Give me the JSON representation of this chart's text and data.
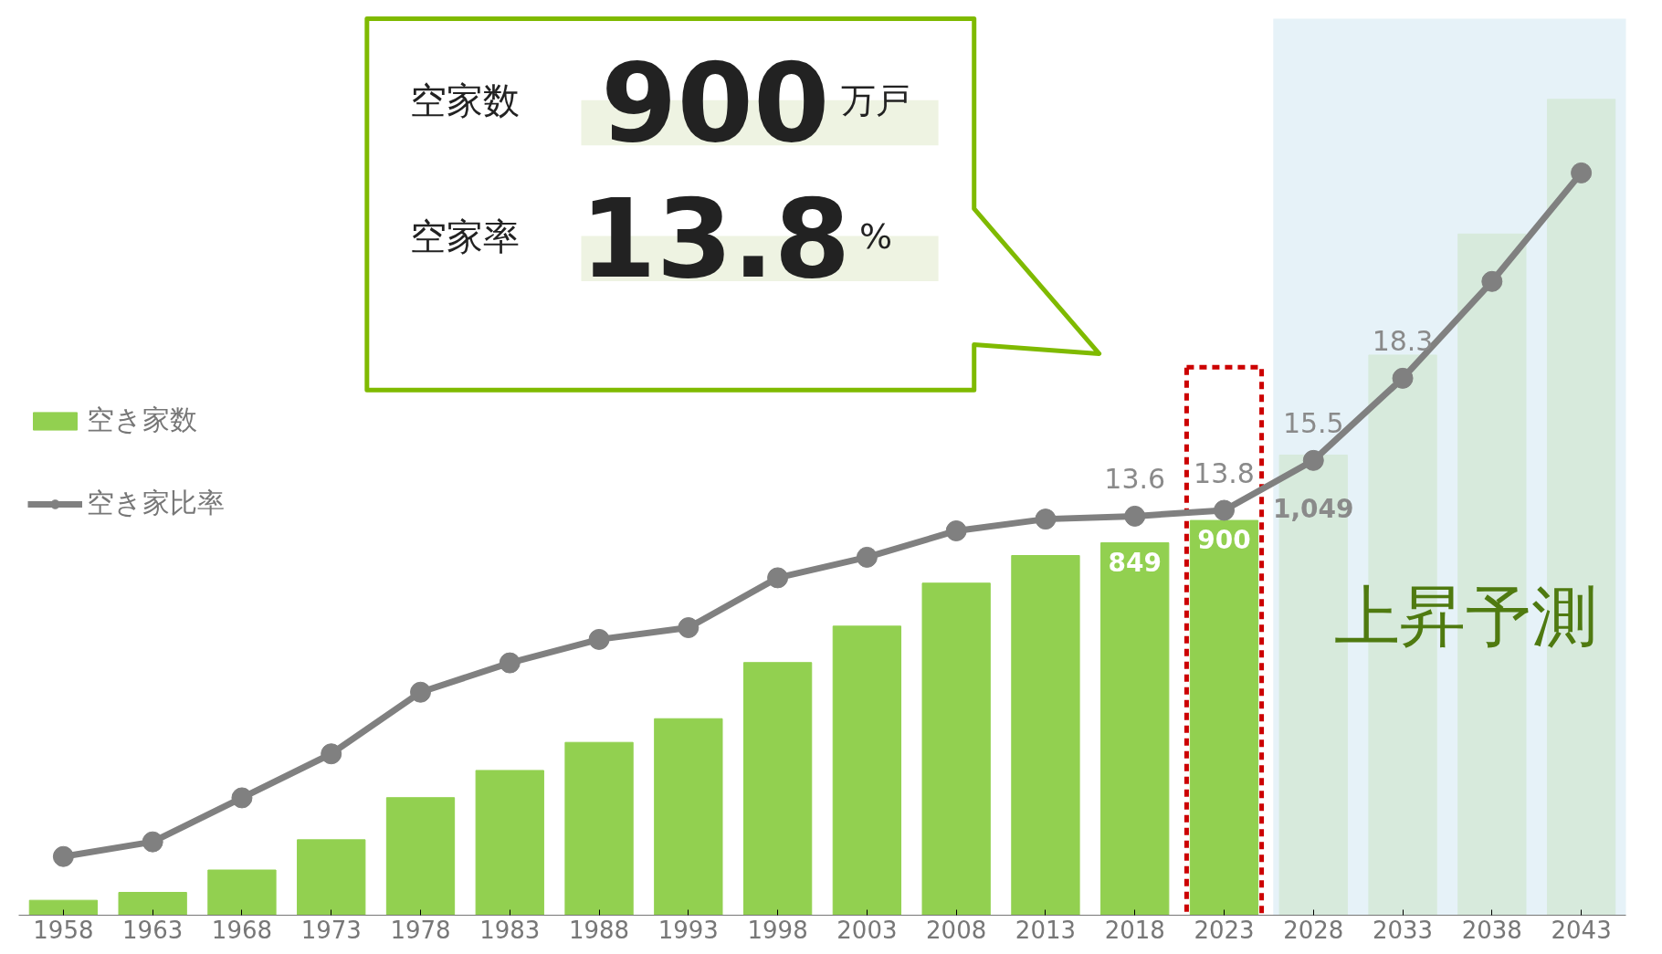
{
  "chart_data": {
    "type": "bar",
    "categories": [
      "1958",
      "1963",
      "1968",
      "1973",
      "1978",
      "1983",
      "1988",
      "1993",
      "1998",
      "2003",
      "2008",
      "2013",
      "2018",
      "2023",
      "2028",
      "2033",
      "2038",
      "2043"
    ],
    "series": [
      {
        "name": "空き家数",
        "color": "#92d050",
        "colors": [
          "#92d050",
          "#92d050",
          "#92d050",
          "#92d050",
          "#92d050",
          "#92d050",
          "#92d050",
          "#92d050",
          "#92d050",
          "#92d050",
          "#92d050",
          "#92d050",
          "#92d050",
          "#92d050",
          "#d7eadc",
          "#d7eadc",
          "#d7eadc",
          "#d7eadc"
        ],
        "values": [
          34,
          52,
          103,
          172,
          268,
          330,
          394,
          448,
          576,
          659,
          757,
          820,
          849,
          900,
          1049,
          1277,
          1553,
          1860
        ],
        "value_labels": [
          null,
          null,
          null,
          null,
          null,
          null,
          null,
          null,
          null,
          null,
          null,
          null,
          "849",
          "900",
          "1,049",
          null,
          null,
          null
        ]
      },
      {
        "name": "空き家比率",
        "type": "line",
        "axis": "y2",
        "color": "#808080",
        "values": [
          2.0,
          2.5,
          4.0,
          5.5,
          7.6,
          8.6,
          9.4,
          9.8,
          11.5,
          12.2,
          13.1,
          13.5,
          13.6,
          13.8,
          15.5,
          18.3,
          21.6,
          25.3
        ],
        "value_labels": [
          null,
          null,
          null,
          null,
          null,
          null,
          null,
          null,
          null,
          null,
          null,
          null,
          "13.6",
          "13.8",
          "15.5",
          "18.3",
          null,
          null
        ]
      }
    ],
    "tick_labels": "x",
    "grid": false,
    "legend": "left",
    "marker": "circle",
    "line_style": "solid",
    "bands": [
      {
        "axis": "x",
        "from": "2028",
        "to": "2043",
        "label": "上昇予測",
        "color": "#e6f2f8"
      }
    ],
    "annotations": [
      "空家数",
      "900",
      "万戸",
      "空家率",
      "13.8",
      "%"
    ]
  }
}
